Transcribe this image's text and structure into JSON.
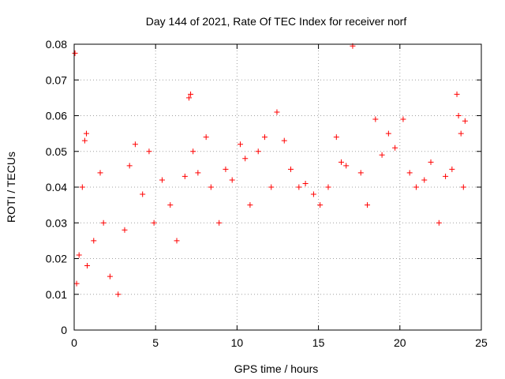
{
  "chart_data": {
    "type": "scatter",
    "title": "Day 144 of 2021, Rate Of TEC Index for receiver norf",
    "xlabel": "GPS time / hours",
    "ylabel": "ROTI / TECUs",
    "xlim": [
      0,
      25
    ],
    "ylim": [
      0,
      0.08
    ],
    "xticks": [
      0,
      5,
      10,
      15,
      20,
      25
    ],
    "yticks": [
      0,
      0.01,
      0.02,
      0.03,
      0.04,
      0.05,
      0.06,
      0.07,
      0.08
    ],
    "xtick_labels": [
      "0",
      "5",
      "10",
      "15",
      "20",
      "25"
    ],
    "ytick_labels": [
      "0",
      "0.01",
      "0.02",
      "0.03",
      "0.04",
      "0.05",
      "0.06",
      "0.07",
      "0.08"
    ],
    "grid": true,
    "marker": "+",
    "marker_color": "#ff0000",
    "series": [
      {
        "name": "ROTI",
        "x": [
          0.05,
          0.15,
          0.3,
          0.5,
          0.65,
          0.75,
          0.8,
          1.2,
          1.6,
          1.8,
          2.2,
          2.7,
          3.1,
          3.4,
          3.75,
          4.2,
          4.6,
          4.9,
          5.4,
          5.9,
          6.3,
          6.8,
          7.05,
          7.15,
          7.3,
          7.6,
          8.1,
          8.4,
          8.9,
          9.3,
          9.7,
          10.2,
          10.5,
          10.8,
          11.3,
          11.7,
          12.1,
          12.45,
          12.9,
          13.3,
          13.8,
          14.2,
          14.7,
          15.1,
          15.6,
          16.1,
          16.4,
          16.7,
          17.1,
          17.6,
          18.0,
          18.5,
          18.9,
          19.3,
          19.7,
          20.2,
          20.6,
          21.0,
          21.5,
          21.9,
          22.4,
          22.8,
          23.2,
          23.5,
          23.6,
          23.75,
          23.9,
          24.0
        ],
        "y": [
          0.0775,
          0.013,
          0.021,
          0.04,
          0.053,
          0.055,
          0.018,
          0.025,
          0.044,
          0.03,
          0.015,
          0.01,
          0.028,
          0.046,
          0.052,
          0.038,
          0.05,
          0.03,
          0.042,
          0.035,
          0.025,
          0.043,
          0.065,
          0.066,
          0.05,
          0.044,
          0.054,
          0.04,
          0.03,
          0.045,
          0.042,
          0.052,
          0.048,
          0.035,
          0.05,
          0.054,
          0.04,
          0.061,
          0.053,
          0.045,
          0.04,
          0.041,
          0.038,
          0.035,
          0.04,
          0.054,
          0.047,
          0.046,
          0.0795,
          0.044,
          0.035,
          0.059,
          0.049,
          0.055,
          0.051,
          0.059,
          0.044,
          0.04,
          0.042,
          0.047,
          0.03,
          0.043,
          0.045,
          0.066,
          0.06,
          0.055,
          0.04,
          0.0585
        ]
      }
    ]
  }
}
